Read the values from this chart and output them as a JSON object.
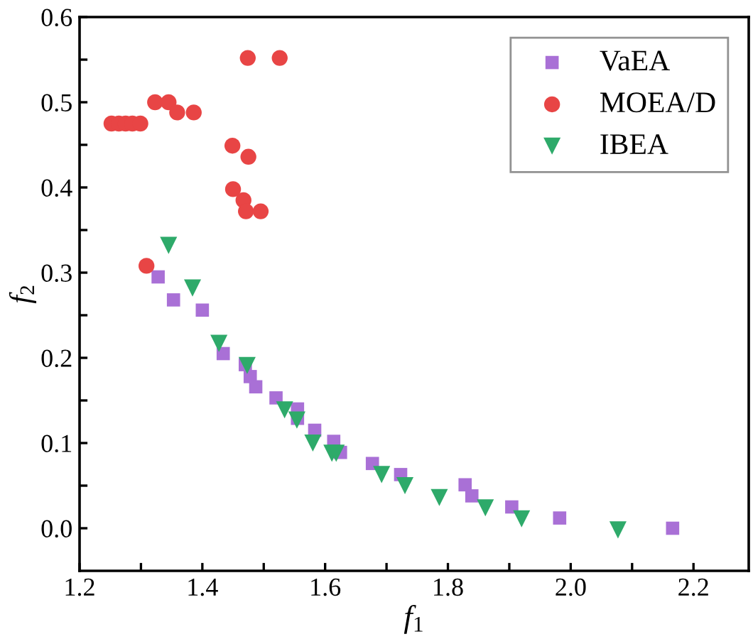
{
  "chart_data": {
    "type": "scatter",
    "xlabel": "f$_{1}$",
    "ylabel": "f$_{2}$",
    "xlim": [
      1.2,
      2.29
    ],
    "ylim": [
      -0.05,
      0.6
    ],
    "xticks": [
      {
        "value": 1.2,
        "label": "1.2"
      },
      {
        "value": 1.3,
        "label": null
      },
      {
        "value": 1.4,
        "label": "1.4"
      },
      {
        "value": 1.5,
        "label": null
      },
      {
        "value": 1.6,
        "label": "1.6"
      },
      {
        "value": 1.7,
        "label": null
      },
      {
        "value": 1.8,
        "label": "1.8"
      },
      {
        "value": 1.9,
        "label": null
      },
      {
        "value": 2.0,
        "label": "2.0"
      },
      {
        "value": 2.1,
        "label": null
      },
      {
        "value": 2.2,
        "label": "2.2"
      }
    ],
    "yticks": [
      {
        "value": 0.0,
        "label": "0.0"
      },
      {
        "value": 0.05,
        "label": null
      },
      {
        "value": 0.1,
        "label": "0.1"
      },
      {
        "value": 0.15,
        "label": null
      },
      {
        "value": 0.2,
        "label": "0.2"
      },
      {
        "value": 0.25,
        "label": null
      },
      {
        "value": 0.3,
        "label": "0.3"
      },
      {
        "value": 0.35,
        "label": null
      },
      {
        "value": 0.4,
        "label": "0.4"
      },
      {
        "value": 0.45,
        "label": null
      },
      {
        "value": 0.5,
        "label": "0.5"
      },
      {
        "value": 0.55,
        "label": null
      },
      {
        "value": 0.6,
        "label": "0.6"
      }
    ],
    "grid": false,
    "legend": "top right",
    "series": [
      {
        "name": "VaEA",
        "color": "#a970d6",
        "marker": "square",
        "x": [
          1.328,
          1.353,
          1.4,
          1.434,
          1.47,
          1.478,
          1.487,
          1.52,
          1.555,
          1.555,
          1.583,
          1.614,
          1.625,
          1.677,
          1.723,
          1.828,
          1.839,
          1.904,
          1.982,
          2.166
        ],
        "values": [
          0.295,
          0.268,
          0.256,
          0.205,
          0.192,
          0.178,
          0.166,
          0.153,
          0.14,
          0.129,
          0.115,
          0.102,
          0.089,
          0.076,
          0.063,
          0.051,
          0.038,
          0.025,
          0.012,
          0.0
        ]
      },
      {
        "name": "MOEA/D",
        "color": "#e84545",
        "marker": "circle",
        "x": [
          1.252,
          1.264,
          1.275,
          1.286,
          1.299,
          1.323,
          1.345,
          1.359,
          1.386,
          1.449,
          1.475,
          1.474,
          1.526,
          1.45,
          1.467,
          1.471,
          1.495,
          1.309
        ],
        "values": [
          0.475,
          0.475,
          0.475,
          0.475,
          0.475,
          0.5,
          0.5,
          0.488,
          0.488,
          0.449,
          0.436,
          0.552,
          0.552,
          0.398,
          0.385,
          0.372,
          0.372,
          0.308
        ]
      },
      {
        "name": "IBEA",
        "color": "#2eaa6a",
        "marker": "triangle",
        "x": [
          1.345,
          1.384,
          1.427,
          1.473,
          1.534,
          1.554,
          1.58,
          1.611,
          1.618,
          1.692,
          1.73,
          1.786,
          1.861,
          1.92,
          2.077
        ],
        "values": [
          0.332,
          0.282,
          0.217,
          0.191,
          0.139,
          0.127,
          0.1,
          0.088,
          0.088,
          0.063,
          0.05,
          0.036,
          0.024,
          0.011,
          -0.002
        ]
      }
    ]
  }
}
